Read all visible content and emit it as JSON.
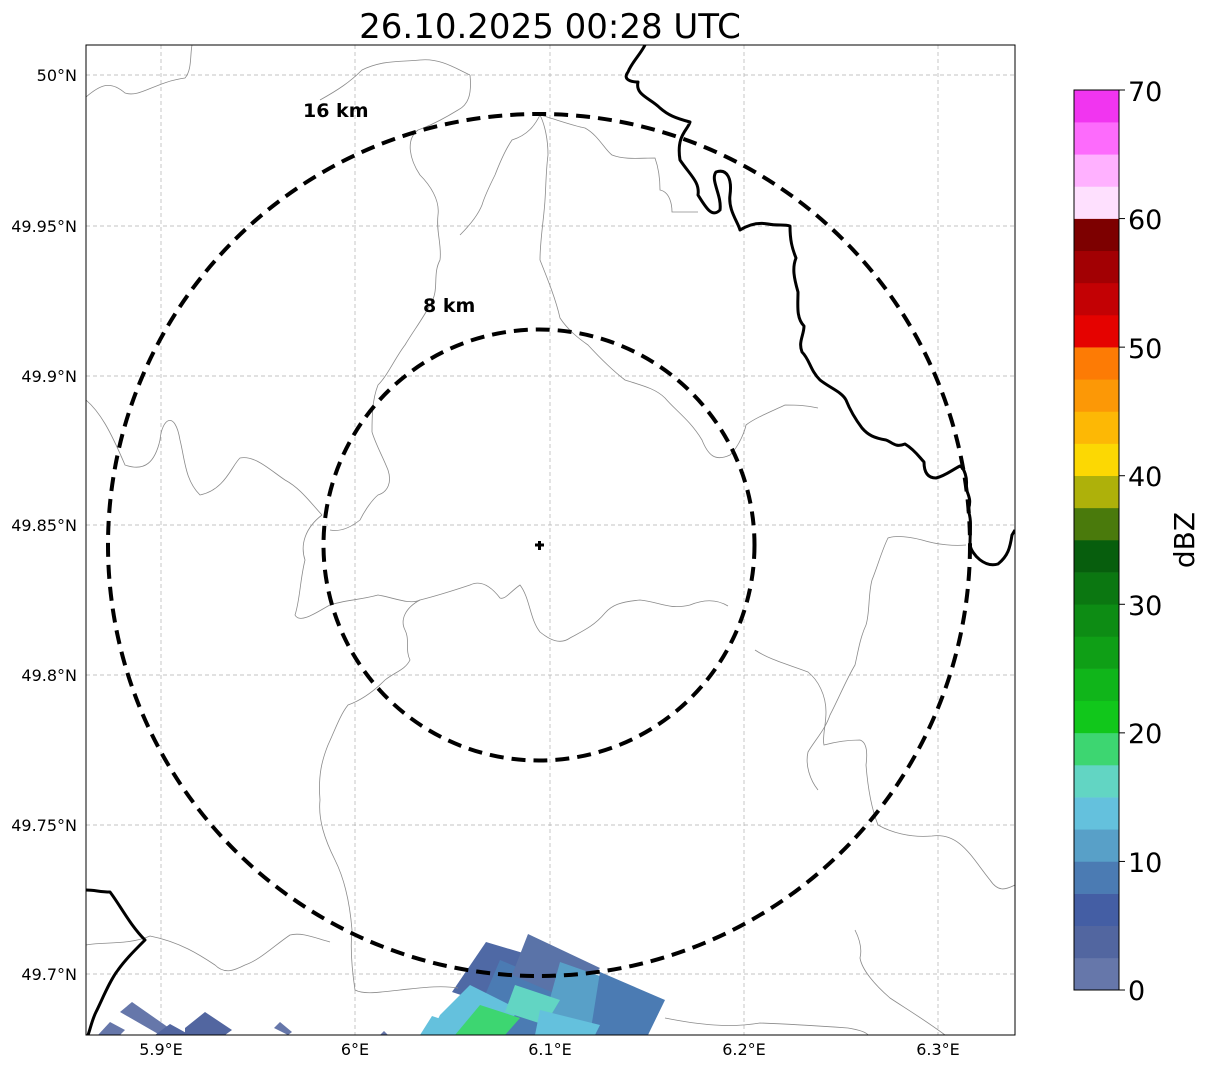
{
  "title": "26.10.2025 00:28 UTC",
  "x_ticks": [
    "5.9°E",
    "6°E",
    "6.1°E",
    "6.2°E",
    "6.3°E"
  ],
  "y_ticks": [
    "50°N",
    "49.95°N",
    "49.9°N",
    "49.85°N",
    "49.8°N",
    "49.75°N",
    "49.7°N"
  ],
  "ring_labels": {
    "outer": "16 km",
    "inner": "8 km"
  },
  "colorbar": {
    "label": "dBZ",
    "ticks": [
      "0",
      "10",
      "20",
      "30",
      "40",
      "50",
      "60",
      "70"
    ],
    "colors": [
      "#6677aa",
      "#5266a0",
      "#445ea4",
      "#4b7bb3",
      "#58a0c8",
      "#64c1dd",
      "#62d5c3",
      "#3dd671",
      "#11c71b",
      "#10b51a",
      "#0f9f16",
      "#0d8c14",
      "#0b7711",
      "#075e0d",
      "#4a7a0c",
      "#aeb10a",
      "#fcd803",
      "#fdb805",
      "#fc9806",
      "#fd7b05",
      "#e50200",
      "#c30104",
      "#a20003",
      "#7d0000",
      "#fee0fe",
      "#ffb1ff",
      "#fd6bfc",
      "#f135f0"
    ]
  },
  "map_extent": {
    "lon": [
      5.86,
      6.34
    ],
    "lat": [
      49.68,
      50.01
    ]
  },
  "radar_site": {
    "lon": 6.095,
    "lat": 49.843,
    "symbol": "cross-marker"
  },
  "range_rings_km": [
    8,
    16
  ],
  "colors": {
    "grid": "#b0b0b0",
    "thin_border": "#8a8a8a",
    "thick_border": "#000000"
  }
}
